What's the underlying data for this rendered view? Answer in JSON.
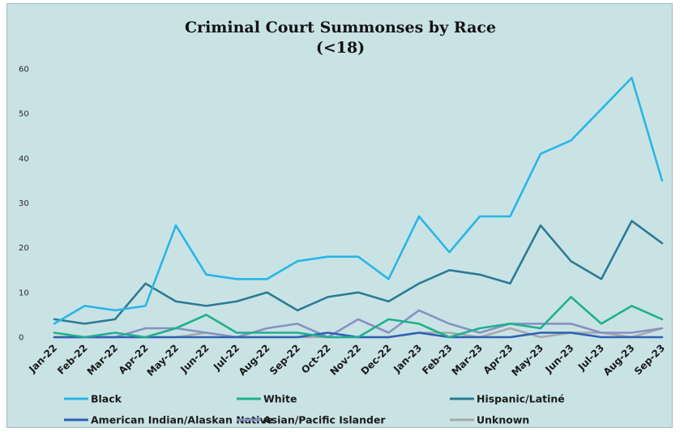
{
  "chart_data": {
    "type": "line",
    "title": "Criminal Court Summonses by Race",
    "subtitle": "(<18)",
    "xlabel": "",
    "ylabel": "",
    "ylim": [
      0,
      60
    ],
    "yticks": [
      0,
      10,
      20,
      30,
      40,
      50,
      60
    ],
    "grid": false,
    "legend_position": "bottom",
    "categories": [
      "Jan-22",
      "Feb-22",
      "Mar-22",
      "Apr-22",
      "May-22",
      "Jun-22",
      "Jul-22",
      "Aug-22",
      "Sep-22",
      "Oct-22",
      "Nov-22",
      "Dec-22",
      "Jan-23",
      "Feb-23",
      "Mar-23",
      "Apr-23",
      "May-23",
      "Jun-23",
      "Jul-23",
      "Aug-23",
      "Sep-23"
    ],
    "series": [
      {
        "name": "Black",
        "color": "#29b5e8",
        "values": [
          3,
          7,
          6,
          7,
          25,
          14,
          13,
          13,
          17,
          18,
          18,
          13,
          27,
          19,
          27,
          27,
          41,
          44,
          51,
          58,
          35
        ]
      },
      {
        "name": "White",
        "color": "#1fb08f",
        "values": [
          1,
          0,
          1,
          0,
          2,
          5,
          1,
          1,
          1,
          0,
          0,
          4,
          3,
          0,
          2,
          3,
          2,
          9,
          3,
          7,
          4
        ]
      },
      {
        "name": "Hispanic/Latiné",
        "color": "#2c7a95",
        "values": [
          4,
          3,
          4,
          12,
          8,
          7,
          8,
          10,
          6,
          9,
          10,
          8,
          12,
          15,
          14,
          12,
          25,
          17,
          13,
          26,
          21
        ]
      },
      {
        "name": "American Indian/Alaskan Native",
        "color": "#2e60b5",
        "values": [
          0,
          0,
          0,
          0,
          0,
          0,
          0,
          0,
          0,
          1,
          0,
          0,
          1,
          0,
          0,
          0,
          1,
          1,
          0,
          0,
          0
        ]
      },
      {
        "name": "Asian/Pacific Islander",
        "color": "#8890c4",
        "values": [
          0,
          0,
          0,
          2,
          2,
          1,
          0,
          2,
          3,
          0,
          4,
          1,
          6,
          3,
          1,
          3,
          3,
          3,
          1,
          1,
          2
        ]
      },
      {
        "name": "Unknown",
        "color": "#a8a8a8",
        "values": [
          0,
          0,
          0,
          0,
          0,
          1,
          0,
          0,
          0,
          0,
          0,
          0,
          1,
          1,
          0,
          2,
          0,
          1,
          1,
          0,
          2
        ]
      }
    ]
  }
}
